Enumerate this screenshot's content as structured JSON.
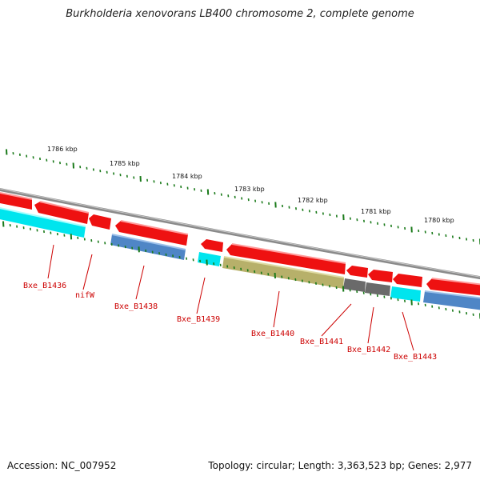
{
  "title": "Burkholderia xenovorans LB400 chromosome 2, complete genome",
  "accession": "Accession: NC_007952",
  "summary": "Topology: circular; Length: 3,363,523 bp; Genes: 2,977",
  "colors": {
    "backbone": "#8a8a8a",
    "gene_forward": "#ee1111",
    "gene_reverse_cyan": "#00e5ee",
    "gene_reverse_blue": "#4f86c6",
    "gene_olive": "#b7b06a",
    "gene_gray": "#6a6a6a",
    "tick": "#1a7a1a",
    "label": "#cc0000"
  },
  "kbp_labels": [
    "1786 kbp",
    "1785 kbp",
    "1784 kbp",
    "1783 kbp",
    "1782 kbp",
    "1781 kbp",
    "1780 kbp"
  ],
  "gene_labels": [
    "Bxe_B1436",
    "nifW",
    "Bxe_B1438",
    "Bxe_B1439",
    "Bxe_B1440",
    "Bxe_B1441",
    "Bxe_B1442",
    "Bxe_B1443"
  ]
}
